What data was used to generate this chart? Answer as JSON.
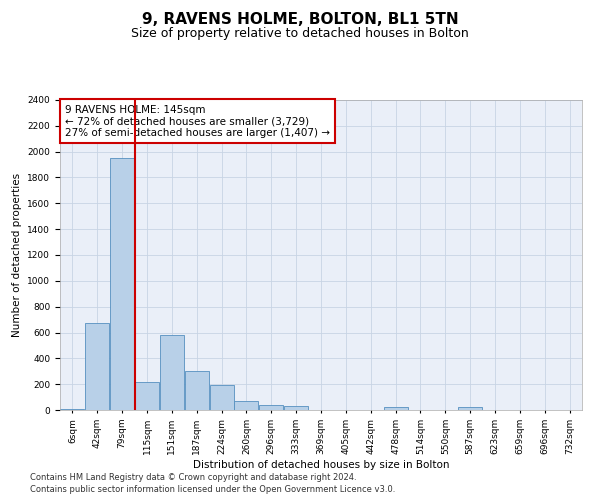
{
  "title1": "9, RAVENS HOLME, BOLTON, BL1 5TN",
  "title2": "Size of property relative to detached houses in Bolton",
  "xlabel": "Distribution of detached houses by size in Bolton",
  "ylabel": "Number of detached properties",
  "annotation_title": "9 RAVENS HOLME: 145sqm",
  "annotation_line1": "← 72% of detached houses are smaller (3,729)",
  "annotation_line2": "27% of semi-detached houses are larger (1,407) →",
  "footer1": "Contains HM Land Registry data © Crown copyright and database right 2024.",
  "footer2": "Contains public sector information licensed under the Open Government Licence v3.0.",
  "bin_labels": [
    "6sqm",
    "42sqm",
    "79sqm",
    "115sqm",
    "151sqm",
    "187sqm",
    "224sqm",
    "260sqm",
    "296sqm",
    "333sqm",
    "369sqm",
    "405sqm",
    "442sqm",
    "478sqm",
    "514sqm",
    "550sqm",
    "587sqm",
    "623sqm",
    "659sqm",
    "696sqm",
    "732sqm"
  ],
  "bar_values": [
    5,
    670,
    1950,
    220,
    580,
    300,
    195,
    70,
    38,
    28,
    0,
    0,
    0,
    27,
    0,
    0,
    23,
    0,
    0,
    0,
    0
  ],
  "bar_color": "#b8d0e8",
  "bar_edge_color": "#5590c0",
  "vline_color": "#cc0000",
  "vline_after_index": 3,
  "annotation_box_color": "#ffffff",
  "annotation_box_edge_color": "#cc0000",
  "ylim": [
    0,
    2400
  ],
  "yticks": [
    0,
    200,
    400,
    600,
    800,
    1000,
    1200,
    1400,
    1600,
    1800,
    2000,
    2200,
    2400
  ],
  "grid_color": "#c8d4e4",
  "bg_color": "#eaeff8",
  "title1_fontsize": 11,
  "title2_fontsize": 9,
  "annotation_fontsize": 7.5,
  "footer_fontsize": 6,
  "tick_fontsize": 6.5,
  "label_fontsize": 7.5
}
